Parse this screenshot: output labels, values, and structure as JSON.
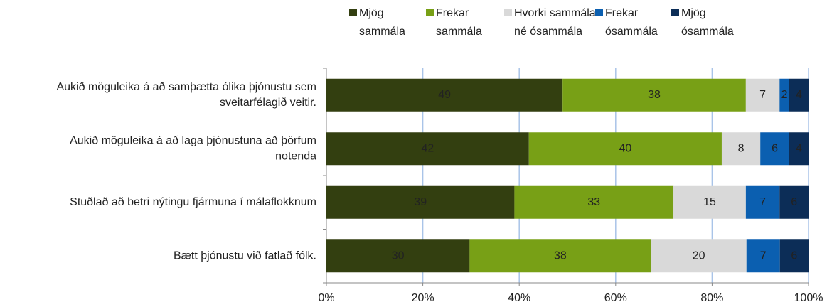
{
  "chart_data": {
    "type": "bar",
    "orientation": "horizontal",
    "stack": "percent",
    "categories": [
      "Aukið möguleika á að samþætta ólika þjónustu sem\nsveitarfélagið veitir.",
      "Aukið möguleika á að laga þjónustuna að þörfum\nnotenda",
      "Stuðlað að betri nýtingu fjármuna í málaflokknum",
      "Bætt þjónustu við fatlað fólk."
    ],
    "series": [
      {
        "name": "Mjög\nsammála",
        "color": "#333f10",
        "values": [
          49,
          42,
          39,
          30
        ]
      },
      {
        "name": "Frekar\nsammála",
        "color": "#78a016",
        "values": [
          38,
          40,
          33,
          38
        ]
      },
      {
        "name": "Hvorki sammála\nné ósammála",
        "color": "#d9d9d9",
        "values": [
          7,
          8,
          15,
          20
        ]
      },
      {
        "name": "Frekar\nósammála",
        "color": "#0b5fb0",
        "values": [
          2,
          6,
          7,
          7
        ]
      },
      {
        "name": "Mjög\nósammála",
        "color": "#0c2d57",
        "values": [
          4,
          4,
          6,
          6
        ]
      }
    ],
    "xlim": [
      0,
      100
    ],
    "xticks": [
      {
        "value": 0,
        "label": "0%"
      },
      {
        "value": 20,
        "label": "20%"
      },
      {
        "value": 40,
        "label": "40%"
      },
      {
        "value": 60,
        "label": "60%"
      },
      {
        "value": 80,
        "label": "80%"
      },
      {
        "value": 100,
        "label": "100%"
      }
    ],
    "grid": true,
    "legend": "top"
  }
}
